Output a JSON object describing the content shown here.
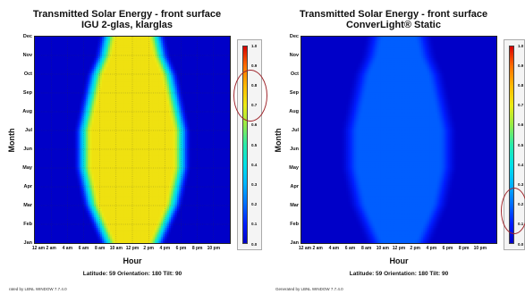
{
  "chart_data": [
    {
      "type": "heatmap",
      "title": "Transmitted Solar Energy - front surface",
      "subtitle": "IGU 2-glas, klarglas",
      "xlabel": "Hour",
      "ylabel": "Month",
      "x_tick_labels": [
        "12 am",
        "2 am",
        "4 am",
        "6 am",
        "8 am",
        "10 am",
        "12 pm",
        "2 pm",
        "4 pm",
        "6 pm",
        "8 pm",
        "10 pm"
      ],
      "y_tick_labels": [
        "Jan",
        "Feb",
        "Mar",
        "Apr",
        "May",
        "Jun",
        "Jul",
        "Aug",
        "Sep",
        "Oct",
        "Nov",
        "Dec"
      ],
      "colorbar": {
        "min": 0.0,
        "max": 1.0,
        "ticks": [
          "0.0",
          "0.1",
          "0.2",
          "0.3",
          "0.4",
          "0.5",
          "0.6",
          "0.7",
          "0.8",
          "0.9",
          "1.0"
        ]
      },
      "info": "Latitude: 59 Orientation: 180 Tilt: 90",
      "footer": "rated by LBNL WINDOW 7.7.4.0",
      "peak_value": 0.72,
      "daylight_hours_by_month": [
        [
          8.5,
          15.5
        ],
        [
          7.5,
          16.5
        ],
        [
          6.5,
          17.5
        ],
        [
          6.0,
          18.0
        ],
        [
          5.5,
          18.5
        ],
        [
          5.5,
          18.5
        ],
        [
          5.5,
          18.5
        ],
        [
          6.0,
          18.0
        ],
        [
          6.5,
          17.5
        ],
        [
          7.0,
          17.0
        ],
        [
          8.0,
          16.0
        ],
        [
          8.5,
          15.5
        ]
      ],
      "grid": true,
      "highlight": "circled colorbar range 0.7–0.8"
    },
    {
      "type": "heatmap",
      "title": "Transmitted Solar Energy - front surface",
      "subtitle": "ConverLight® Static",
      "xlabel": "Hour",
      "ylabel": "Month",
      "x_tick_labels": [
        "12 am",
        "2 am",
        "4 am",
        "6 am",
        "8 am",
        "10 am",
        "12 pm",
        "2 pm",
        "4 pm",
        "6 pm",
        "8 pm",
        "10 pm"
      ],
      "y_tick_labels": [
        "Jan",
        "Feb",
        "Mar",
        "Apr",
        "May",
        "Jun",
        "Jul",
        "Aug",
        "Sep",
        "Oct",
        "Nov",
        "Dec"
      ],
      "colorbar": {
        "min": 0.0,
        "max": 1.0,
        "ticks": [
          "0.0",
          "0.1",
          "0.2",
          "0.3",
          "0.4",
          "0.5",
          "0.6",
          "0.7",
          "0.8",
          "0.9",
          "1.0"
        ]
      },
      "info": "Latitude: 59 Orientation: 180 Tilt: 90",
      "footer": "Generated by LBNL WINDOW 7.7.4.0",
      "peak_value": 0.18,
      "daylight_hours_by_month": [
        [
          8.5,
          15.5
        ],
        [
          7.5,
          16.5
        ],
        [
          6.5,
          17.5
        ],
        [
          6.0,
          18.0
        ],
        [
          5.5,
          18.5
        ],
        [
          5.5,
          18.5
        ],
        [
          5.5,
          18.5
        ],
        [
          6.0,
          18.0
        ],
        [
          6.5,
          17.5
        ],
        [
          7.0,
          17.0
        ],
        [
          8.0,
          16.0
        ],
        [
          8.5,
          15.5
        ]
      ],
      "grid": false,
      "highlight": "circled colorbar range 0.1–0.2"
    }
  ]
}
